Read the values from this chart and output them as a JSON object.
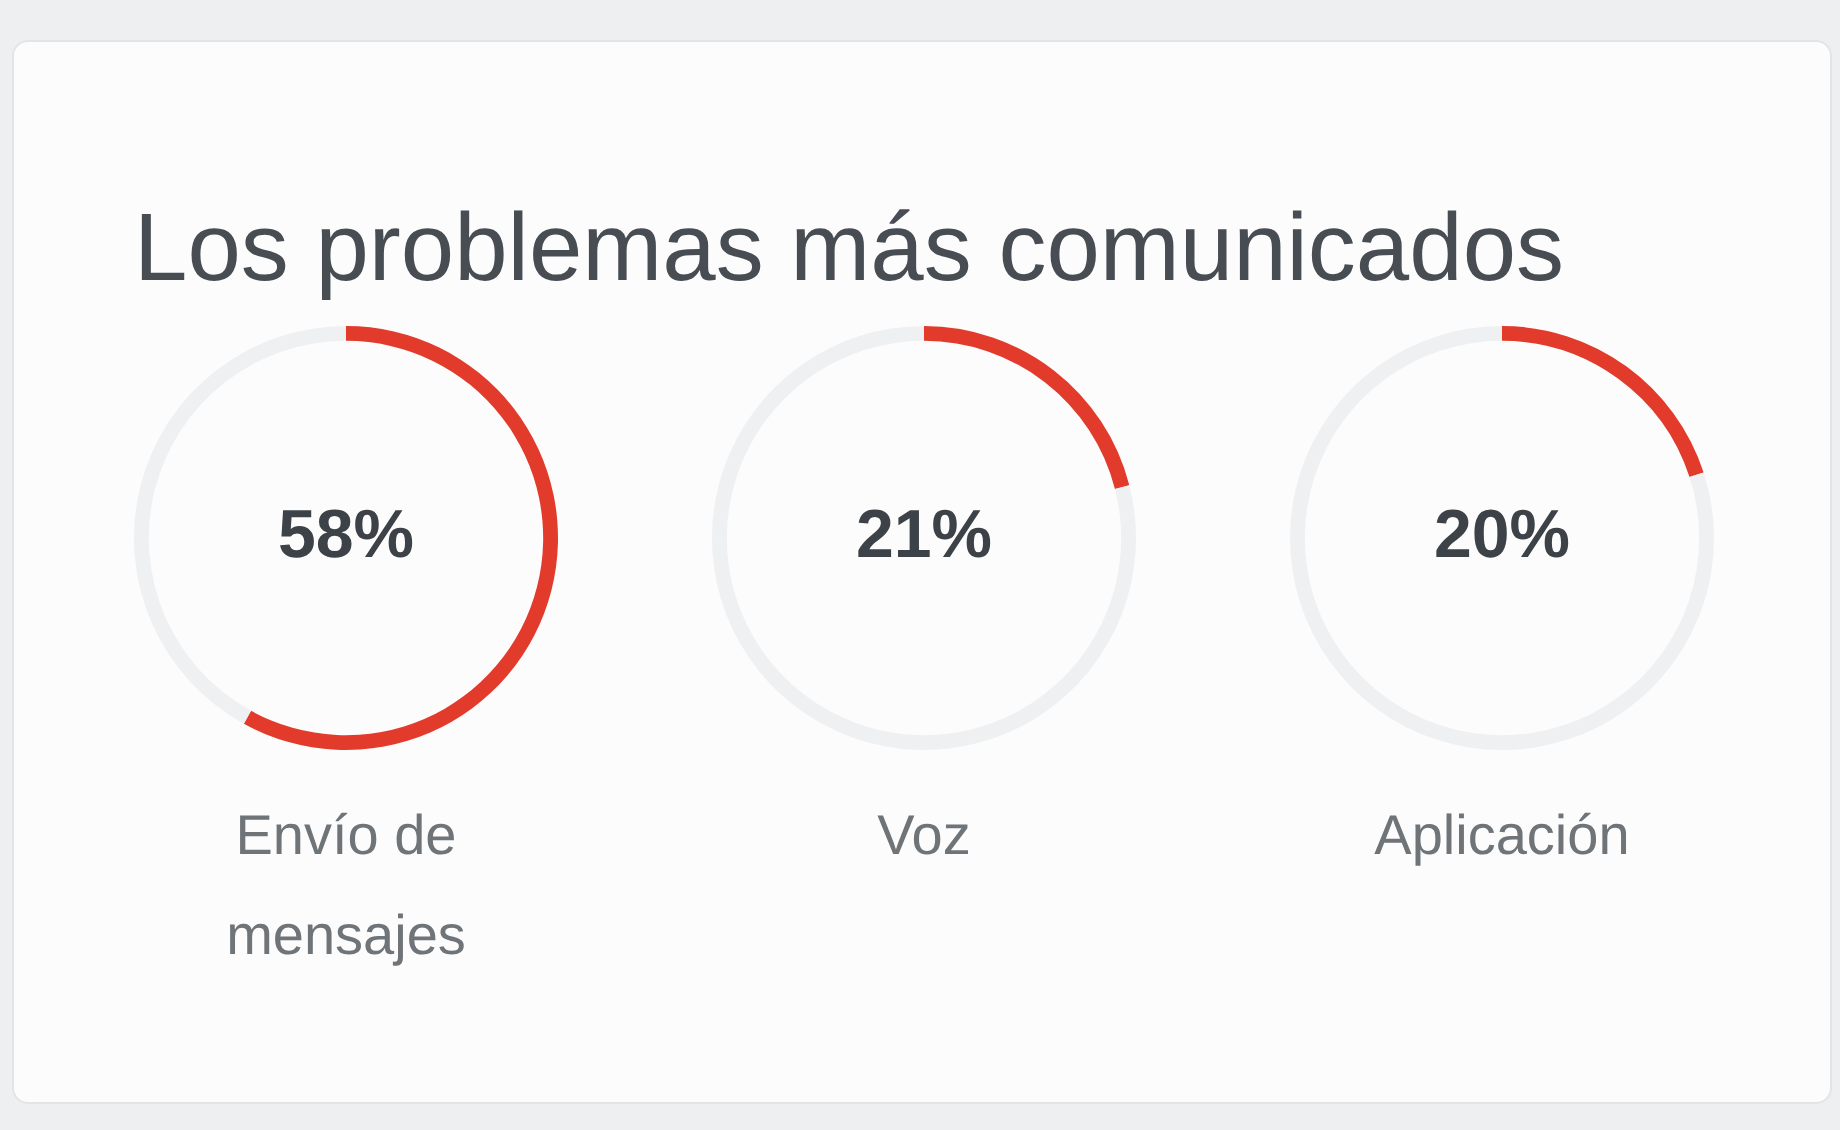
{
  "chart_data": [
    {
      "type": "donut",
      "title": "Los problemas más comunicados",
      "xlabel": "Envío de mensajes",
      "categories": [
        null,
        null
      ],
      "values": [
        58,
        42
      ],
      "colors": [
        "#e23b2c",
        "#eef0f2"
      ],
      "annotations": [
        "58%"
      ],
      "legend": false
    },
    {
      "type": "donut",
      "xlabel": "Voz",
      "categories": [
        null,
        null
      ],
      "values": [
        21,
        79
      ],
      "colors": [
        "#e23b2c",
        "#eef0f2"
      ],
      "annotations": [
        "21%"
      ],
      "legend": false
    },
    {
      "type": "donut",
      "xlabel": "Aplicación",
      "categories": [
        null,
        null
      ],
      "values": [
        20,
        80
      ],
      "colors": [
        "#e23b2c",
        "#eef0f2"
      ],
      "annotations": [
        "20%"
      ],
      "legend": false
    }
  ]
}
